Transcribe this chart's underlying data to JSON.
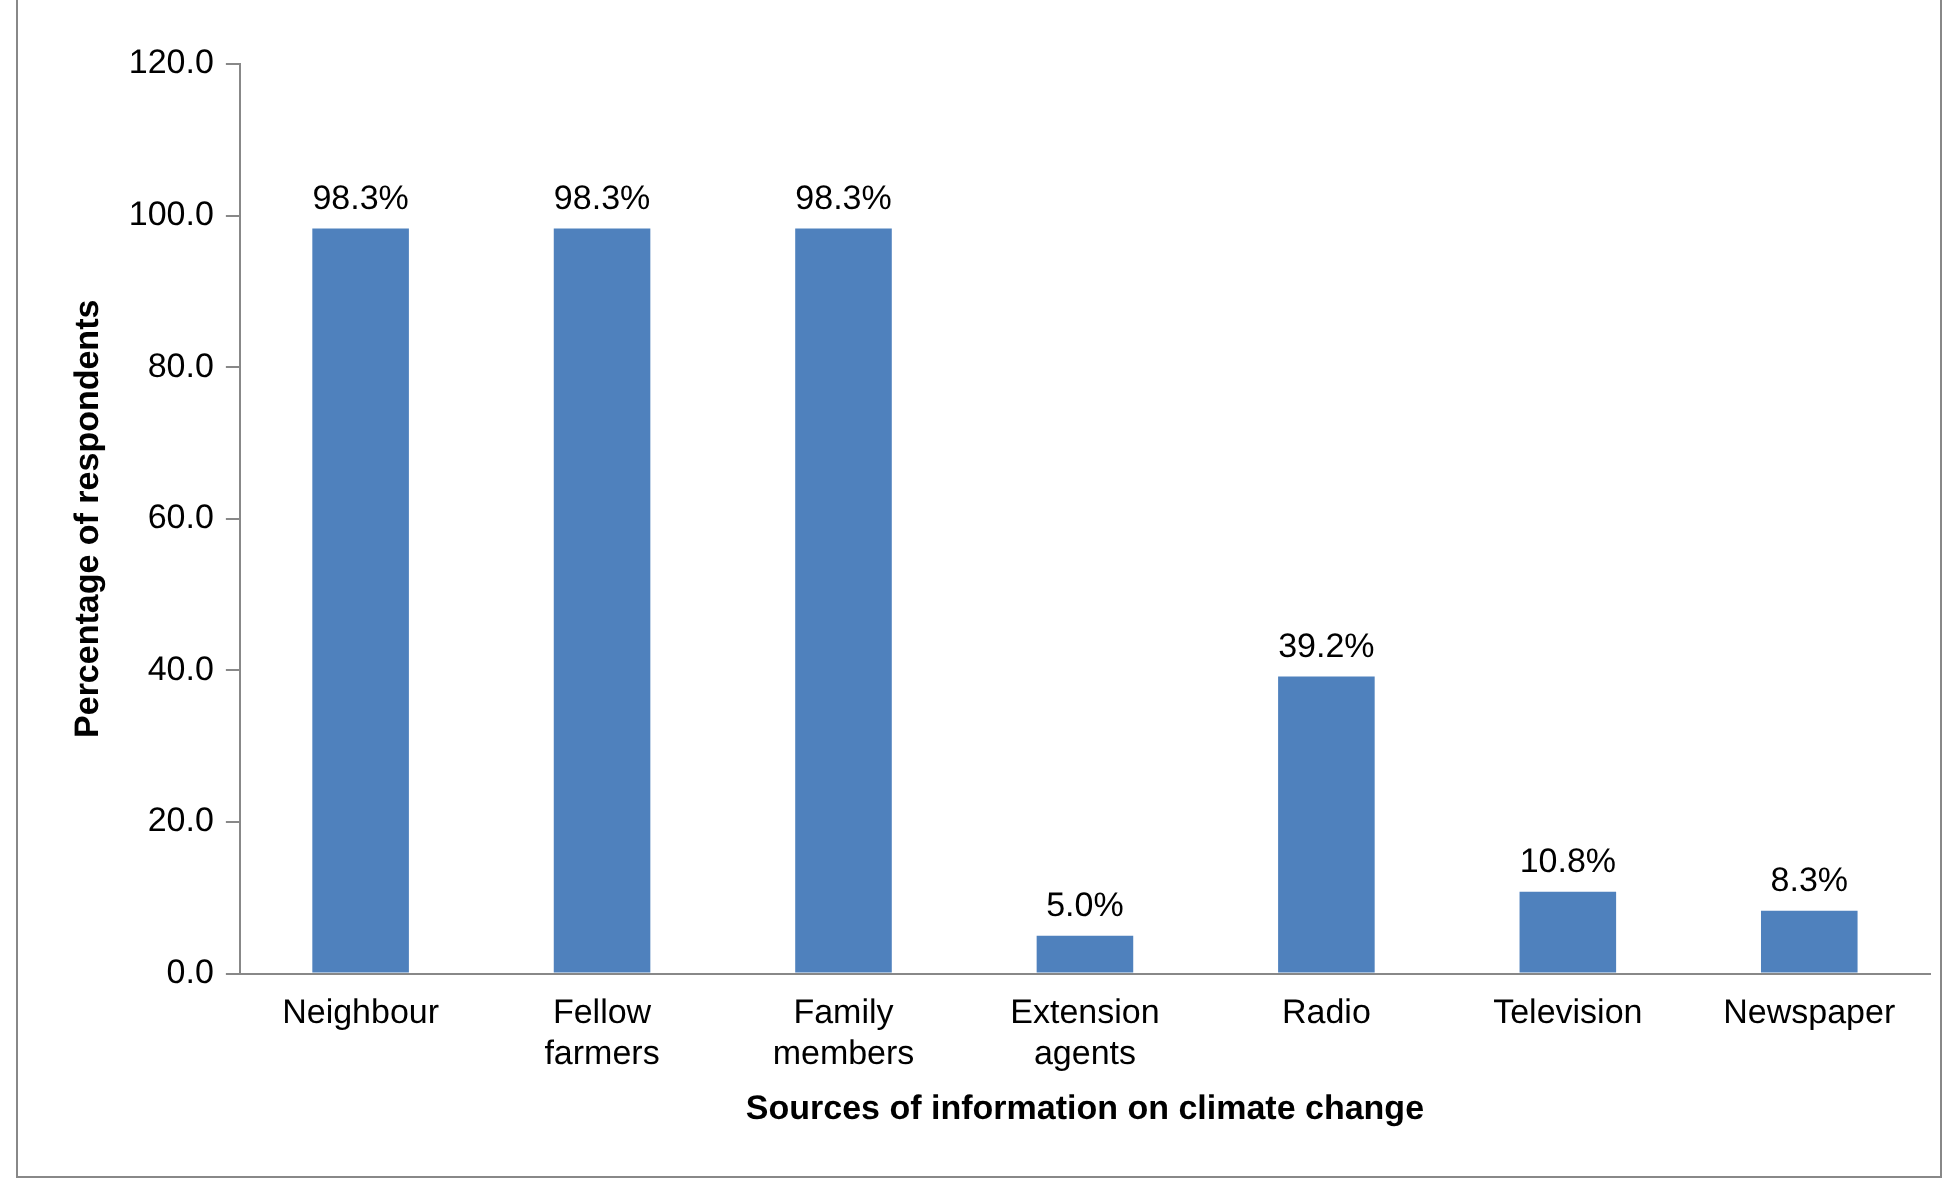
{
  "chart_data": {
    "type": "bar",
    "xlabel": "Sources of information on climate change",
    "ylabel": "Percentage of respondents",
    "categories": [
      "Neighbour",
      "Fellow farmers",
      "Family members",
      "Extension agents",
      "Radio",
      "Television",
      "Newspaper"
    ],
    "values": [
      98.3,
      98.3,
      98.3,
      5.0,
      39.2,
      10.8,
      8.3
    ],
    "value_labels": [
      "98.3%",
      "98.3%",
      "98.3%",
      "5.0%",
      "39.2%",
      "10.8%",
      "8.3%"
    ],
    "color": "#4f81bd",
    "ylim": [
      0,
      120
    ],
    "yticks": [
      {
        "value": 0,
        "label": "0.0"
      },
      {
        "value": 20,
        "label": "20.0"
      },
      {
        "value": 40,
        "label": "40.0"
      },
      {
        "value": 60,
        "label": "60.0"
      },
      {
        "value": 80,
        "label": "80.0"
      },
      {
        "value": 100,
        "label": "100.0"
      },
      {
        "value": 120,
        "label": "120.0"
      }
    ],
    "grid": false,
    "legend": false
  }
}
